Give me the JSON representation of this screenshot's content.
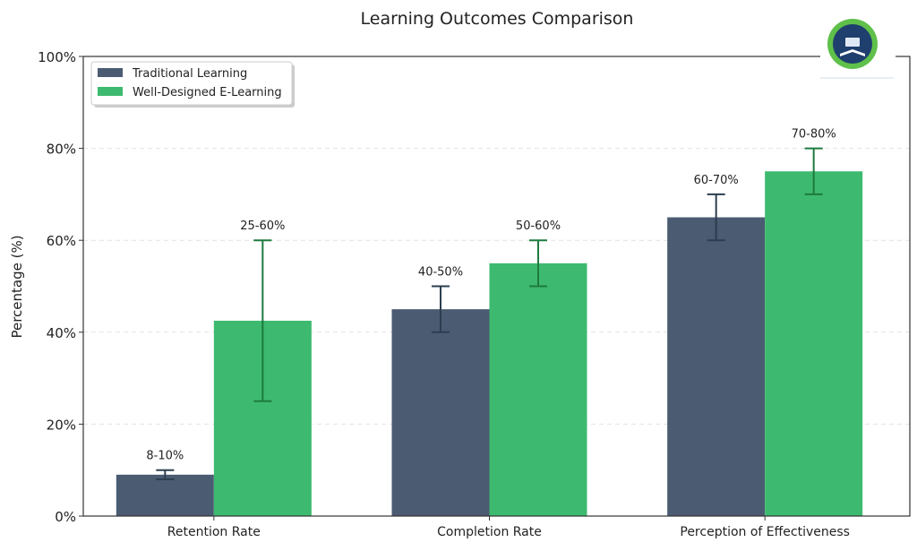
{
  "chart_data": {
    "type": "bar",
    "title": "Learning Outcomes Comparison",
    "xlabel": "",
    "ylabel": "Percentage (%)",
    "ylim": [
      0,
      100
    ],
    "yticks": [
      "0%",
      "20%",
      "40%",
      "60%",
      "80%",
      "100%"
    ],
    "ytick_values": [
      0,
      20,
      40,
      60,
      80,
      100
    ],
    "grid": "horizontal dashed",
    "legend_placement": "top-left",
    "categories": [
      "Retention Rate",
      "Completion Rate",
      "Perception of Effectiveness"
    ],
    "series": [
      {
        "name": "Traditional Learning",
        "color": "#4a5b72",
        "error_color": "#2c3e50",
        "values": [
          9,
          45,
          65
        ],
        "low": [
          8,
          40,
          60
        ],
        "high": [
          10,
          50,
          70
        ],
        "labels": [
          "8-10%",
          "40-50%",
          "60-70%"
        ]
      },
      {
        "name": "Well-Designed E-Learning",
        "color": "#3dba6f",
        "error_color": "#1e7a3e",
        "values": [
          42.5,
          55,
          75
        ],
        "low": [
          25,
          50,
          70
        ],
        "high": [
          60,
          60,
          80
        ],
        "labels": [
          "25-60%",
          "50-60%",
          "70-80%"
        ]
      }
    ]
  },
  "logo": {
    "name": "e-learning-seal-logo"
  }
}
